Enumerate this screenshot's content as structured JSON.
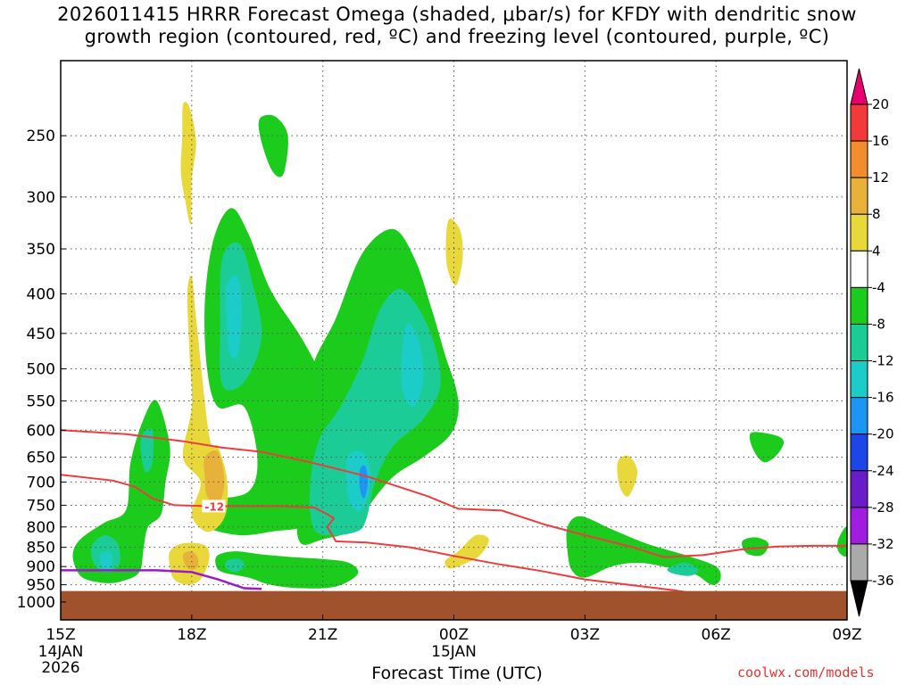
{
  "chart_data": {
    "type": "heatmap",
    "title_line1": "2026011415 HRRR Forecast Omega (shaded, μbar/s) for KFDY with dendritic snow",
    "title_line2": "growth region (contoured, red, ºC) and freezing level (contoured, purple, ºC)",
    "xlabel": "Forecast Time (UTC)",
    "credit": "coolwx.com/models",
    "x_hours": [
      0,
      3,
      6,
      9,
      12,
      15,
      18
    ],
    "x_tick_labels": [
      "15Z",
      "18Z",
      "21Z",
      "00Z",
      "03Z",
      "06Z",
      "09Z"
    ],
    "x_date_labels": [
      {
        "hour": 0,
        "lines": [
          "14JAN",
          "2026"
        ]
      },
      {
        "hour": 9,
        "lines": [
          "15JAN"
        ]
      }
    ],
    "y_levels": [
      250,
      300,
      350,
      400,
      450,
      500,
      550,
      600,
      650,
      700,
      750,
      800,
      850,
      900,
      950,
      1000
    ],
    "y_range_hpa": [
      1000,
      200
    ],
    "contour_label": "-12",
    "colorbar": {
      "tick_labels": [
        "20",
        "16",
        "12",
        "8",
        "4",
        "-4",
        "-8",
        "-12",
        "-16",
        "-20",
        "-24",
        "-28",
        "-32",
        "-36"
      ],
      "colors": [
        "#e8006e",
        "#f23a3a",
        "#f28c2c",
        "#e8b23a",
        "#e8d83a",
        "#ffffff",
        "#1ccc1c",
        "#1ccc96",
        "#1cccc8",
        "#1c96f2",
        "#1c46e8",
        "#6a1cc8",
        "#a01ce0",
        "#aaaaaa",
        "#000000"
      ]
    },
    "colors": {
      "green": "#1ccc1c",
      "teal": "#1ccc96",
      "cyan": "#1cccc8",
      "blue": "#1c96f2",
      "yellow": "#e8d83a",
      "gold": "#e8b23a",
      "orange": "#f28c2c",
      "dgz": "#ee3c3c",
      "freezing": "#9a1cc8",
      "ground": "#a0522d"
    },
    "ground_level_hpa": 968,
    "dgz_upper_isotherm": [
      [
        0,
        600
      ],
      [
        1.5,
        607
      ],
      [
        2.8,
        620
      ],
      [
        3.7,
        632
      ],
      [
        4.6,
        640
      ],
      [
        5.7,
        660
      ],
      [
        7.0,
        688
      ],
      [
        8.4,
        730
      ],
      [
        9.1,
        758
      ],
      [
        10.1,
        762
      ],
      [
        11.1,
        795
      ],
      [
        12.0,
        820
      ],
      [
        13.1,
        850
      ],
      [
        13.8,
        875
      ],
      [
        14.7,
        870
      ],
      [
        15.6,
        855
      ],
      [
        16.4,
        848
      ],
      [
        17.2,
        846
      ],
      [
        18.0,
        846
      ]
    ],
    "dgz_lower_isotherm": [
      [
        0,
        685
      ],
      [
        1.2,
        697
      ],
      [
        1.7,
        710
      ],
      [
        2.1,
        735
      ],
      [
        2.6,
        750
      ],
      [
        3.4,
        752
      ],
      [
        4.2,
        752
      ],
      [
        5.0,
        752
      ],
      [
        5.8,
        755
      ],
      [
        6.1,
        770
      ],
      [
        6.25,
        780
      ],
      [
        6.1,
        800
      ],
      [
        6.3,
        835
      ],
      [
        7.0,
        838
      ],
      [
        8.0,
        850
      ],
      [
        9.0,
        872
      ],
      [
        10.0,
        893
      ],
      [
        11.0,
        912
      ],
      [
        12.0,
        935
      ],
      [
        13.0,
        950
      ],
      [
        14.0,
        965
      ],
      [
        14.9,
        982
      ]
    ],
    "freezing_level": [
      [
        0,
        910
      ],
      [
        2.2,
        910
      ],
      [
        3.0,
        915
      ],
      [
        3.6,
        935
      ],
      [
        4.2,
        960
      ],
      [
        4.6,
        962
      ]
    ],
    "omega_features": [
      {
        "level": "yellow",
        "points": [
          [
            2.8,
            228
          ],
          [
            2.95,
            230
          ],
          [
            3.1,
            255
          ],
          [
            3.0,
            285
          ],
          [
            2.98,
            325
          ],
          [
            2.85,
            303
          ],
          [
            2.75,
            278
          ],
          [
            2.78,
            252
          ]
        ]
      },
      {
        "level": "green",
        "points": [
          [
            4.55,
            238
          ],
          [
            4.9,
            236
          ],
          [
            5.2,
            250
          ],
          [
            5.1,
            280
          ],
          [
            4.85,
            278
          ],
          [
            4.6,
            255
          ]
        ]
      },
      {
        "level": "yellow",
        "points": [
          [
            8.9,
            320
          ],
          [
            9.15,
            332
          ],
          [
            9.2,
            360
          ],
          [
            9.05,
            390
          ],
          [
            8.85,
            370
          ],
          [
            8.82,
            340
          ]
        ]
      },
      {
        "level": "green",
        "points": [
          [
            3.5,
            340
          ],
          [
            3.9,
            310
          ],
          [
            4.3,
            335
          ],
          [
            4.8,
            395
          ],
          [
            5.5,
            455
          ],
          [
            6.0,
            515
          ],
          [
            6.2,
            560
          ],
          [
            6.0,
            700
          ],
          [
            5.8,
            760
          ],
          [
            5.5,
            800
          ],
          [
            4.9,
            810
          ],
          [
            4.1,
            820
          ],
          [
            3.3,
            800
          ],
          [
            3.0,
            770
          ],
          [
            3.4,
            740
          ],
          [
            4.3,
            720
          ],
          [
            4.5,
            650
          ],
          [
            4.2,
            560
          ],
          [
            3.6,
            560
          ],
          [
            3.35,
            500
          ],
          [
            3.3,
            410
          ]
        ]
      },
      {
        "level": "teal",
        "points": [
          [
            3.7,
            360
          ],
          [
            4.1,
            345
          ],
          [
            4.4,
            390
          ],
          [
            4.6,
            455
          ],
          [
            4.2,
            520
          ],
          [
            3.7,
            525
          ],
          [
            3.65,
            440
          ]
        ]
      },
      {
        "level": "cyan",
        "points": [
          [
            3.8,
            390
          ],
          [
            4.05,
            380
          ],
          [
            4.15,
            420
          ],
          [
            4.05,
            480
          ],
          [
            3.85,
            475
          ],
          [
            3.8,
            430
          ]
        ]
      },
      {
        "level": "green",
        "points": [
          [
            5.8,
            490
          ],
          [
            6.3,
            430
          ],
          [
            6.9,
            355
          ],
          [
            7.6,
            330
          ],
          [
            8.1,
            360
          ],
          [
            8.5,
            420
          ],
          [
            8.8,
            480
          ],
          [
            9.05,
            530
          ],
          [
            9.1,
            570
          ],
          [
            8.9,
            610
          ],
          [
            8.3,
            650
          ],
          [
            7.6,
            690
          ],
          [
            7.0,
            760
          ],
          [
            6.8,
            805
          ],
          [
            6.0,
            830
          ],
          [
            5.5,
            840
          ],
          [
            5.4,
            770
          ],
          [
            5.5,
            650
          ],
          [
            5.6,
            560
          ]
        ]
      },
      {
        "level": "teal",
        "points": [
          [
            6.4,
            560
          ],
          [
            6.9,
            490
          ],
          [
            7.3,
            420
          ],
          [
            7.8,
            395
          ],
          [
            8.4,
            440
          ],
          [
            8.7,
            520
          ],
          [
            8.3,
            580
          ],
          [
            7.6,
            630
          ],
          [
            7.2,
            700
          ],
          [
            7.0,
            780
          ],
          [
            6.8,
            810
          ],
          [
            6.2,
            820
          ],
          [
            5.8,
            805
          ],
          [
            5.7,
            720
          ],
          [
            5.9,
            620
          ]
        ]
      },
      {
        "level": "cyan",
        "points": [
          [
            7.9,
            440
          ],
          [
            8.2,
            460
          ],
          [
            8.3,
            520
          ],
          [
            8.05,
            560
          ],
          [
            7.8,
            520
          ]
        ]
      },
      {
        "level": "cyan",
        "points": [
          [
            6.55,
            655
          ],
          [
            6.9,
            640
          ],
          [
            7.1,
            690
          ],
          [
            6.9,
            760
          ],
          [
            6.6,
            740
          ]
        ]
      },
      {
        "level": "blue",
        "points": [
          [
            6.85,
            675
          ],
          [
            6.97,
            668
          ],
          [
            7.03,
            700
          ],
          [
            6.95,
            735
          ],
          [
            6.85,
            715
          ]
        ]
      },
      {
        "level": "green",
        "points": [
          [
            0.3,
            855
          ],
          [
            0.5,
            825
          ],
          [
            1.0,
            790
          ],
          [
            1.5,
            760
          ],
          [
            1.6,
            660
          ],
          [
            1.9,
            580
          ],
          [
            2.2,
            550
          ],
          [
            2.5,
            630
          ],
          [
            2.4,
            700
          ],
          [
            2.3,
            770
          ],
          [
            2.0,
            800
          ],
          [
            1.9,
            850
          ],
          [
            1.8,
            915
          ],
          [
            1.4,
            940
          ],
          [
            1.0,
            945
          ],
          [
            0.5,
            930
          ],
          [
            0.3,
            890
          ]
        ]
      },
      {
        "level": "teal",
        "points": [
          [
            0.7,
            850
          ],
          [
            1.0,
            820
          ],
          [
            1.3,
            840
          ],
          [
            1.35,
            890
          ],
          [
            1.1,
            915
          ],
          [
            0.8,
            900
          ]
        ]
      },
      {
        "level": "cyan",
        "points": [
          [
            0.9,
            870
          ],
          [
            1.1,
            860
          ],
          [
            1.2,
            880
          ],
          [
            1.1,
            905
          ],
          [
            0.95,
            900
          ]
        ]
      },
      {
        "level": "teal",
        "points": [
          [
            1.85,
            610
          ],
          [
            2.1,
            600
          ],
          [
            2.1,
            660
          ],
          [
            1.95,
            680
          ],
          [
            1.85,
            650
          ]
        ]
      },
      {
        "level": "yellow",
        "points": [
          [
            2.9,
            400
          ],
          [
            3.0,
            380
          ],
          [
            3.1,
            430
          ],
          [
            3.4,
            610
          ],
          [
            3.6,
            630
          ],
          [
            3.8,
            690
          ],
          [
            3.8,
            760
          ],
          [
            3.6,
            800
          ],
          [
            3.3,
            810
          ],
          [
            3.0,
            770
          ],
          [
            3.2,
            700
          ],
          [
            2.8,
            650
          ],
          [
            3.0,
            560
          ],
          [
            2.95,
            480
          ]
        ]
      },
      {
        "level": "gold",
        "points": [
          [
            3.3,
            650
          ],
          [
            3.6,
            640
          ],
          [
            3.75,
            700
          ],
          [
            3.6,
            750
          ],
          [
            3.35,
            730
          ],
          [
            3.3,
            690
          ]
        ]
      },
      {
        "level": "yellow",
        "points": [
          [
            2.5,
            860
          ],
          [
            2.8,
            840
          ],
          [
            3.3,
            845
          ],
          [
            3.4,
            880
          ],
          [
            3.2,
            935
          ],
          [
            2.9,
            950
          ],
          [
            2.6,
            935
          ],
          [
            2.5,
            900
          ]
        ]
      },
      {
        "level": "gold",
        "points": [
          [
            2.8,
            870
          ],
          [
            3.0,
            860
          ],
          [
            3.15,
            880
          ],
          [
            3.1,
            905
          ],
          [
            2.9,
            905
          ]
        ]
      },
      {
        "level": "green",
        "points": [
          [
            3.6,
            870
          ],
          [
            4.0,
            860
          ],
          [
            4.6,
            868
          ],
          [
            5.3,
            875
          ],
          [
            6.0,
            880
          ],
          [
            6.6,
            890
          ],
          [
            6.8,
            920
          ],
          [
            6.3,
            955
          ],
          [
            5.5,
            960
          ],
          [
            4.8,
            950
          ],
          [
            4.3,
            930
          ],
          [
            3.7,
            915
          ],
          [
            3.55,
            895
          ]
        ]
      },
      {
        "level": "teal",
        "points": [
          [
            3.8,
            885
          ],
          [
            4.1,
            880
          ],
          [
            4.2,
            900
          ],
          [
            4.0,
            915
          ],
          [
            3.8,
            905
          ]
        ]
      },
      {
        "level": "yellow",
        "points": [
          [
            8.8,
            885
          ],
          [
            9.1,
            860
          ],
          [
            9.5,
            820
          ],
          [
            9.8,
            830
          ],
          [
            9.6,
            870
          ],
          [
            9.2,
            895
          ],
          [
            8.9,
            905
          ]
        ]
      },
      {
        "level": "yellow",
        "points": [
          [
            12.75,
            660
          ],
          [
            13.0,
            648
          ],
          [
            13.2,
            680
          ],
          [
            13.0,
            730
          ],
          [
            12.8,
            710
          ]
        ]
      },
      {
        "level": "green",
        "points": [
          [
            11.6,
            800
          ],
          [
            11.9,
            775
          ],
          [
            12.6,
            805
          ],
          [
            13.4,
            840
          ],
          [
            14.3,
            870
          ],
          [
            15.0,
            900
          ],
          [
            15.1,
            935
          ],
          [
            14.9,
            950
          ],
          [
            14.5,
            920
          ],
          [
            13.8,
            900
          ],
          [
            13.2,
            890
          ],
          [
            12.6,
            900
          ],
          [
            12.0,
            930
          ],
          [
            11.7,
            910
          ],
          [
            11.6,
            860
          ]
        ]
      },
      {
        "level": "teal",
        "points": [
          [
            13.9,
            905
          ],
          [
            14.3,
            890
          ],
          [
            14.6,
            910
          ],
          [
            14.4,
            925
          ],
          [
            14.0,
            918
          ]
        ]
      },
      {
        "level": "green",
        "points": [
          [
            15.8,
            605
          ],
          [
            16.3,
            608
          ],
          [
            16.55,
            620
          ],
          [
            16.4,
            645
          ],
          [
            16.1,
            660
          ],
          [
            15.85,
            635
          ]
        ]
      },
      {
        "level": "green",
        "points": [
          [
            15.6,
            835
          ],
          [
            15.9,
            825
          ],
          [
            16.2,
            840
          ],
          [
            16.05,
            870
          ],
          [
            15.7,
            865
          ]
        ]
      },
      {
        "level": "green",
        "points": [
          [
            17.8,
            830
          ],
          [
            18.0,
            800
          ],
          [
            18.0,
            870
          ],
          [
            17.8,
            860
          ]
        ]
      }
    ]
  }
}
